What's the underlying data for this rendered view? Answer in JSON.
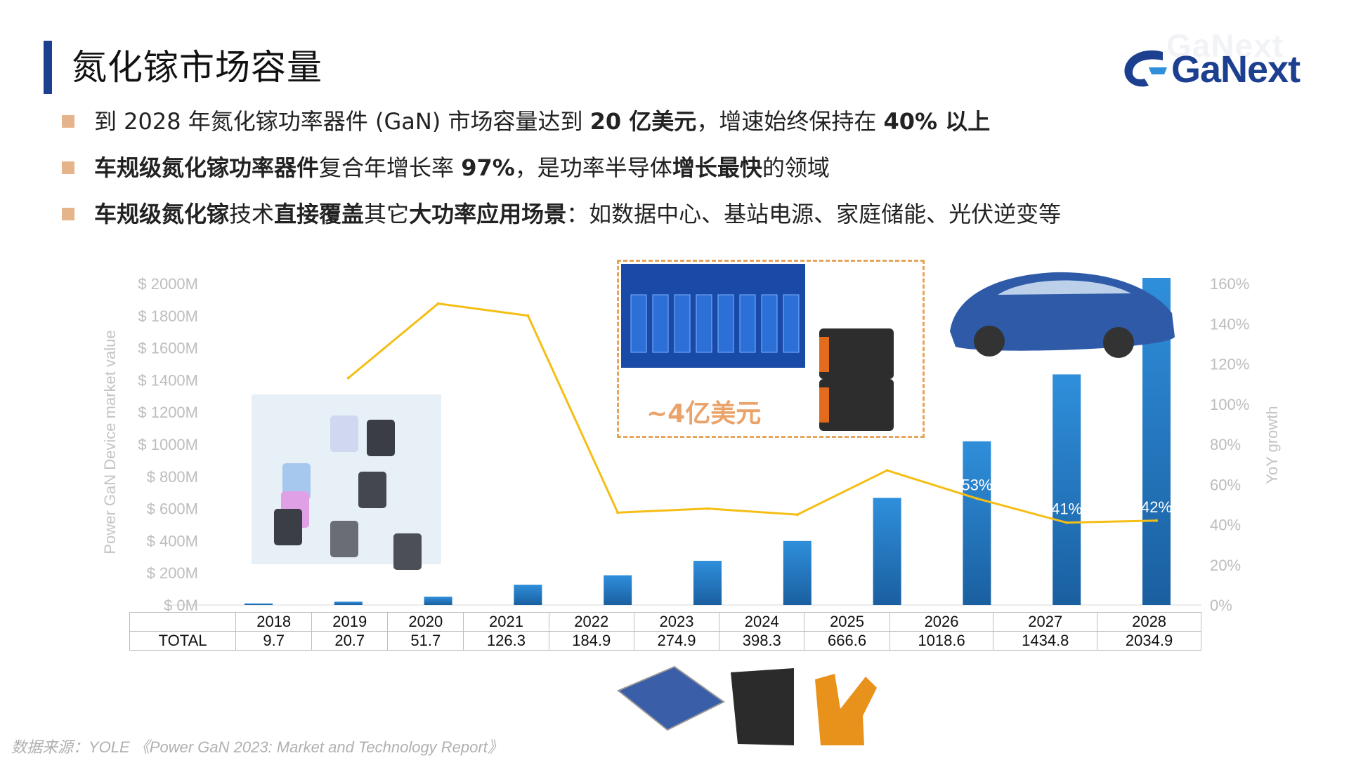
{
  "title": "氮化镓市场容量",
  "logo": {
    "name": "GaNext",
    "watermark": "GaNext"
  },
  "bullets": [
    {
      "parts": [
        {
          "text": "到 2028 年氮化镓功率器件 (GaN) 市场容量达到 ",
          "bold": false
        },
        {
          "text": "20 亿美元",
          "bold": true
        },
        {
          "text": "，增速始终保持在 ",
          "bold": false
        },
        {
          "text": "40% 以上",
          "bold": true
        }
      ]
    },
    {
      "parts": [
        {
          "text": "车规级氮化镓功率器件",
          "bold": true
        },
        {
          "text": "复合年增长率 ",
          "bold": false
        },
        {
          "text": "97%",
          "bold": true
        },
        {
          "text": "，是功率半导体",
          "bold": false
        },
        {
          "text": "增长最快",
          "bold": true
        },
        {
          "text": "的领域",
          "bold": false
        }
      ]
    },
    {
      "parts": [
        {
          "text": "车规级氮化镓",
          "bold": true
        },
        {
          "text": "技术",
          "bold": false
        },
        {
          "text": "直接覆盖",
          "bold": true
        },
        {
          "text": "其它",
          "bold": false
        },
        {
          "text": "大功率应用场景",
          "bold": true
        },
        {
          "text": "：如数据中心、基站电源、家庭储能、光伏逆变等",
          "bold": false
        }
      ]
    }
  ],
  "annotation": "~4亿美元",
  "source": "数据来源：YOLE 《Power GaN 2023: Market and Technology Report》",
  "table": {
    "row_label": "TOTAL"
  },
  "colors": {
    "bar": "#2f8fdb",
    "bar_dark": "#1a5fa0",
    "line": "#f5be14",
    "accent": "#1d3f8f",
    "bullet": "#e6b48a"
  },
  "chart_data": {
    "type": "bar",
    "categories": [
      "2018",
      "2019",
      "2020",
      "2021",
      "2022",
      "2023",
      "2024",
      "2025",
      "2026",
      "2027",
      "2028"
    ],
    "series": [
      {
        "values": [
          9.7,
          20.7,
          51.7,
          126.3,
          184.9,
          274.9,
          398.3,
          666.6,
          1018.6,
          1434.8,
          2034.9
        ]
      },
      {
        "values": [
          null,
          113,
          150,
          144,
          46,
          48,
          45,
          67,
          53,
          41,
          42
        ],
        "axis": "right",
        "type": "line"
      }
    ],
    "ylabel": "Power GaN Device market value",
    "y2label": "YoY growth",
    "ylim": [
      0,
      2000
    ],
    "y2lim": [
      0,
      160
    ],
    "yticks": [
      "$ 0M",
      "$ 200M",
      "$ 400M",
      "$ 600M",
      "$ 800M",
      "$ 1000M",
      "$ 1200M",
      "$ 1400M",
      "$ 1600M",
      "$ 1800M",
      "$ 2000M"
    ],
    "y2ticks": [
      "0%",
      "20%",
      "40%",
      "60%",
      "80%",
      "100%",
      "120%",
      "140%",
      "160%"
    ],
    "data_labels": [
      {
        "category": "2026",
        "text": "53%"
      },
      {
        "category": "2027",
        "text": "41%"
      },
      {
        "category": "2028",
        "text": "42%"
      }
    ],
    "grid": false
  }
}
